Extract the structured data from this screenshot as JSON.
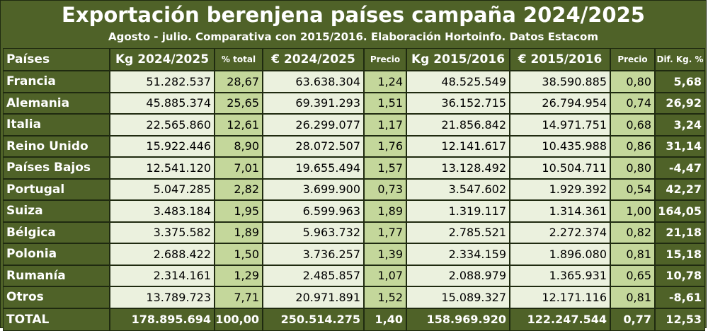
{
  "title": "Exportación berenjena países campaña 2024/2025",
  "subtitle": "Agosto - julio. Comparativa con 2015/2016. Elaboración Hortoinfo. Datos Estacom",
  "chart_data": {
    "type": "table",
    "headers": [
      "Países",
      "Kg 2024/2025",
      "% total",
      "€ 2024/2025",
      "Precio",
      "Kg 2015/2016",
      "€ 2015/2016",
      "Precio",
      "Dif. Kg. %"
    ],
    "rows": [
      [
        "Francia",
        "51.282.537",
        "28,67",
        "63.638.304",
        "1,24",
        "48.525.549",
        "38.590.885",
        "0,80",
        "5,68"
      ],
      [
        "Alemania",
        "45.885.374",
        "25,65",
        "69.391.293",
        "1,51",
        "36.152.715",
        "26.794.954",
        "0,74",
        "26,92"
      ],
      [
        "Italia",
        "22.565.860",
        "12,61",
        "26.299.077",
        "1,17",
        "21.856.842",
        "14.971.751",
        "0,68",
        "3,24"
      ],
      [
        "Reino Unido",
        "15.922.446",
        "8,90",
        "28.072.507",
        "1,76",
        "12.141.617",
        "10.435.988",
        "0,86",
        "31,14"
      ],
      [
        "Países Bajos",
        "12.541.120",
        "7,01",
        "19.655.494",
        "1,57",
        "13.128.492",
        "10.504.711",
        "0,80",
        "-4,47"
      ],
      [
        "Portugal",
        "5.047.285",
        "2,82",
        "3.699.900",
        "0,73",
        "3.547.602",
        "1.929.392",
        "0,54",
        "42,27"
      ],
      [
        "Suiza",
        "3.483.184",
        "1,95",
        "6.599.963",
        "1,89",
        "1.319.117",
        "1.314.361",
        "1,00",
        "164,05"
      ],
      [
        "Bélgica",
        "3.375.582",
        "1,89",
        "5.963.732",
        "1,77",
        "2.785.521",
        "2.272.374",
        "0,82",
        "21,18"
      ],
      [
        "Polonia",
        "2.688.422",
        "1,50",
        "3.736.257",
        "1,39",
        "2.334.159",
        "1.896.080",
        "0,81",
        "15,18"
      ],
      [
        "Rumanía",
        "2.314.161",
        "1,29",
        "2.485.857",
        "1,07",
        "2.088.979",
        "1.365.931",
        "0,65",
        "10,78"
      ],
      [
        "Otros",
        "13.789.723",
        "7,71",
        "20.971.891",
        "1,52",
        "15.089.327",
        "12.171.116",
        "0,81",
        "-8,61"
      ]
    ],
    "total": [
      "TOTAL",
      "178.895.694",
      "100,00",
      "250.514.275",
      "1,40",
      "158.969.920",
      "122.247.544",
      "0,77",
      "12,53"
    ],
    "colors": {
      "header_bg": "#4f6228",
      "cell_light": "#ebf1de",
      "cell_mid": "#c4d79b",
      "text_header": "#ffffff"
    }
  }
}
